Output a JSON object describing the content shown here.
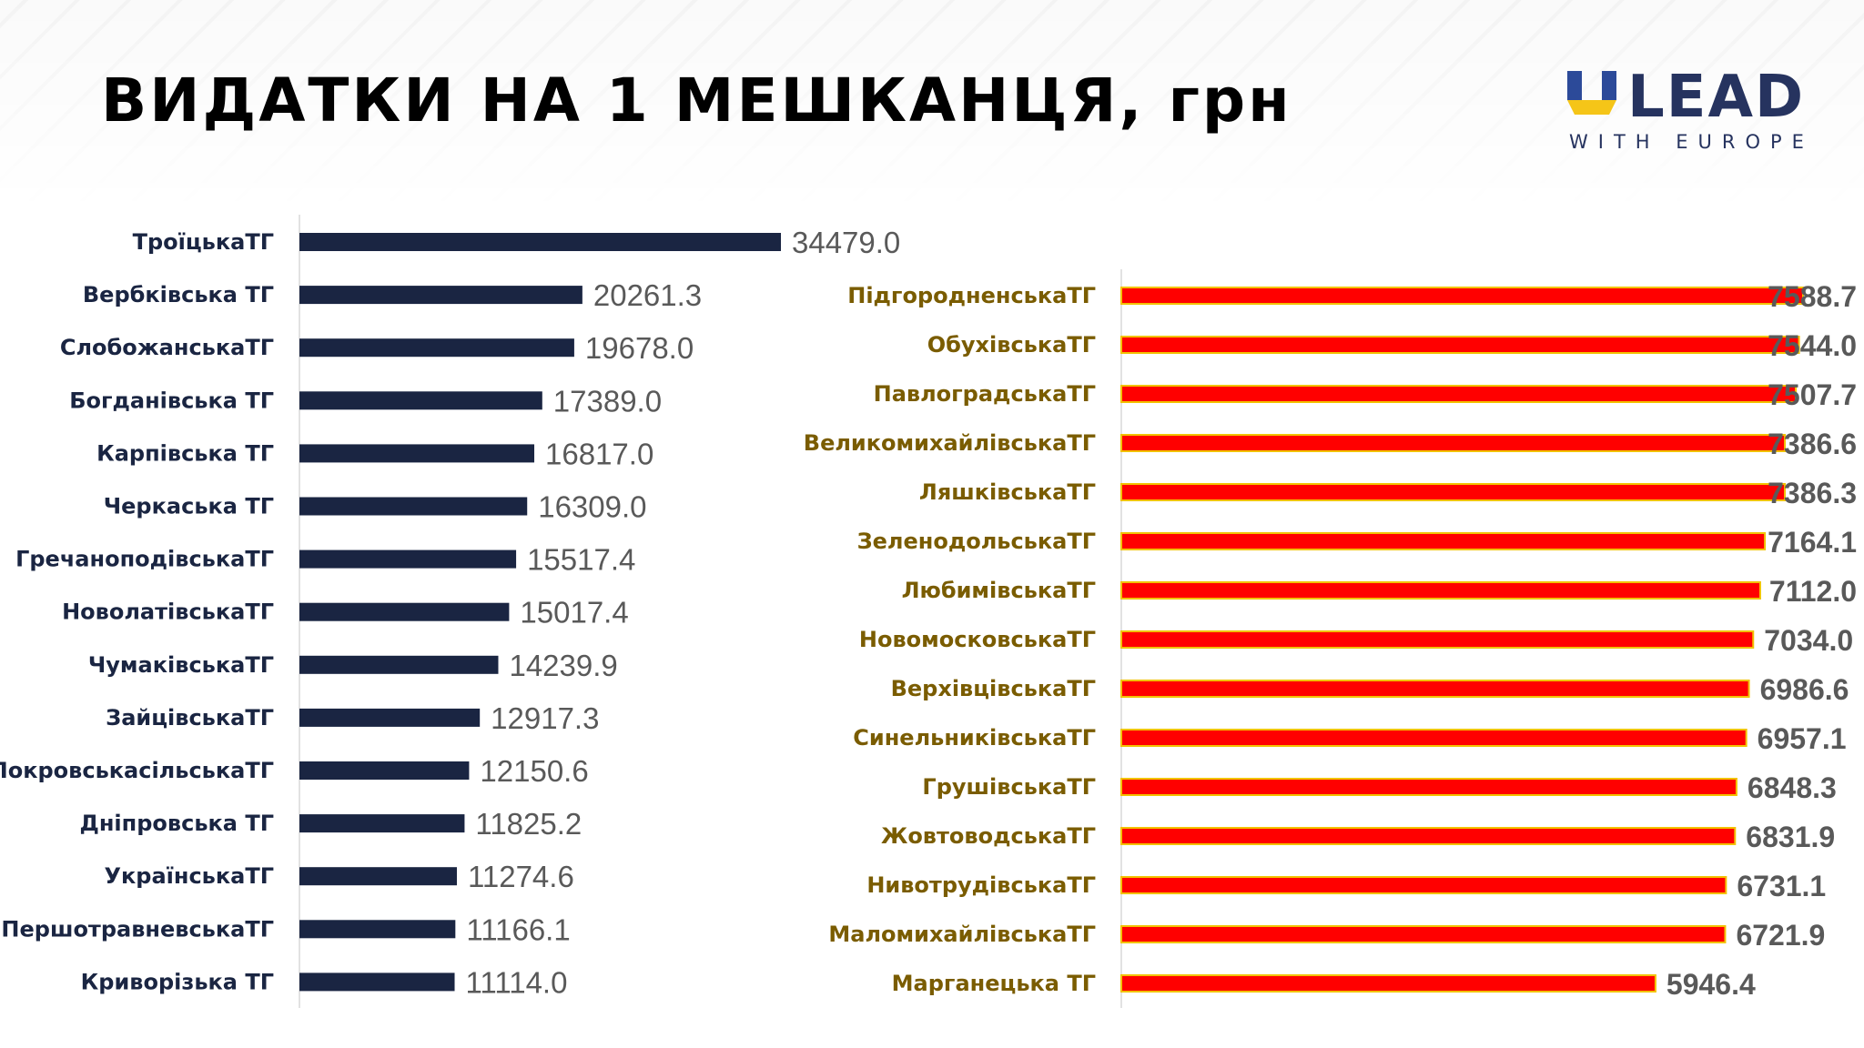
{
  "title": "ВИДАТКИ НА 1 МЕШКАНЦЯ, грн",
  "logo": {
    "word": "LEAD",
    "sub": "WITH EUROPE"
  },
  "colors": {
    "left_bar": "#1a2542",
    "right_bar": "#ff0000",
    "right_bar_outline": "#f2c200",
    "left_label": "#1a2542",
    "right_label": "#7a5c00",
    "value": "#595959"
  },
  "chart_data": [
    {
      "type": "bar",
      "orientation": "horizontal",
      "categories": [
        "ТроїцькаТГ",
        "Вербківська ТГ",
        "СлобожанськаТГ",
        "Богданівська ТГ",
        "Карпівська ТГ",
        "Черкаська ТГ",
        "ГречаноподівськаТГ",
        "НоволатівськаТГ",
        "ЧумаківськаТГ",
        "ЗайцівськаТГ",
        "ПокровськасільськаТГ",
        "Дніпровська ТГ",
        "УкраїнськаТГ",
        "ПершотравневськаТГ",
        "Криворізька ТГ"
      ],
      "values": [
        34479.0,
        20261.3,
        19678.0,
        17389.0,
        16817.0,
        16309.0,
        15517.4,
        15017.4,
        14239.9,
        12917.3,
        12150.6,
        11825.2,
        11274.6,
        11166.1,
        11114.0
      ],
      "labels": [
        "34479.0",
        "20261.3",
        "19678.0",
        "17389.0",
        "16817.0",
        "16309.0",
        "15517.4",
        "15017.4",
        "14239.9",
        "12917.3",
        "12150.6",
        "11825.2",
        "11274.6",
        "11166.1",
        "11114.0"
      ]
    },
    {
      "type": "bar",
      "orientation": "horizontal",
      "categories": [
        "ПідгородненськаТГ",
        "ОбухівськаТГ",
        "ПавлоградськаТГ",
        "ВеликомихайлівськаТГ",
        "ЛяшківськаТГ",
        "ЗеленодольськаТГ",
        "ЛюбимівськаТГ",
        "НовомосковськаТГ",
        "ВерхівцівськаТГ",
        "СинельниківськаТГ",
        "ГрушівськаТГ",
        "ЖовтоводськаТГ",
        "НивотрудівськаТГ",
        "МаломихайлівськаТГ",
        "Марганецька ТГ"
      ],
      "values": [
        7588.7,
        7544.0,
        7507.7,
        7386.6,
        7386.3,
        7164.1,
        7112.0,
        7034.0,
        6986.6,
        6957.1,
        6848.3,
        6831.9,
        6731.1,
        6721.9,
        5946.4
      ],
      "labels": [
        "7588.7",
        "7544.0",
        "7507.7",
        "7386.6",
        "7386.3",
        "7164.1",
        "7112.0",
        "7034.0",
        "6986.6",
        "6957.1",
        "6848.3",
        "6831.9",
        "6731.1",
        "6721.9",
        "5946.4"
      ]
    }
  ]
}
